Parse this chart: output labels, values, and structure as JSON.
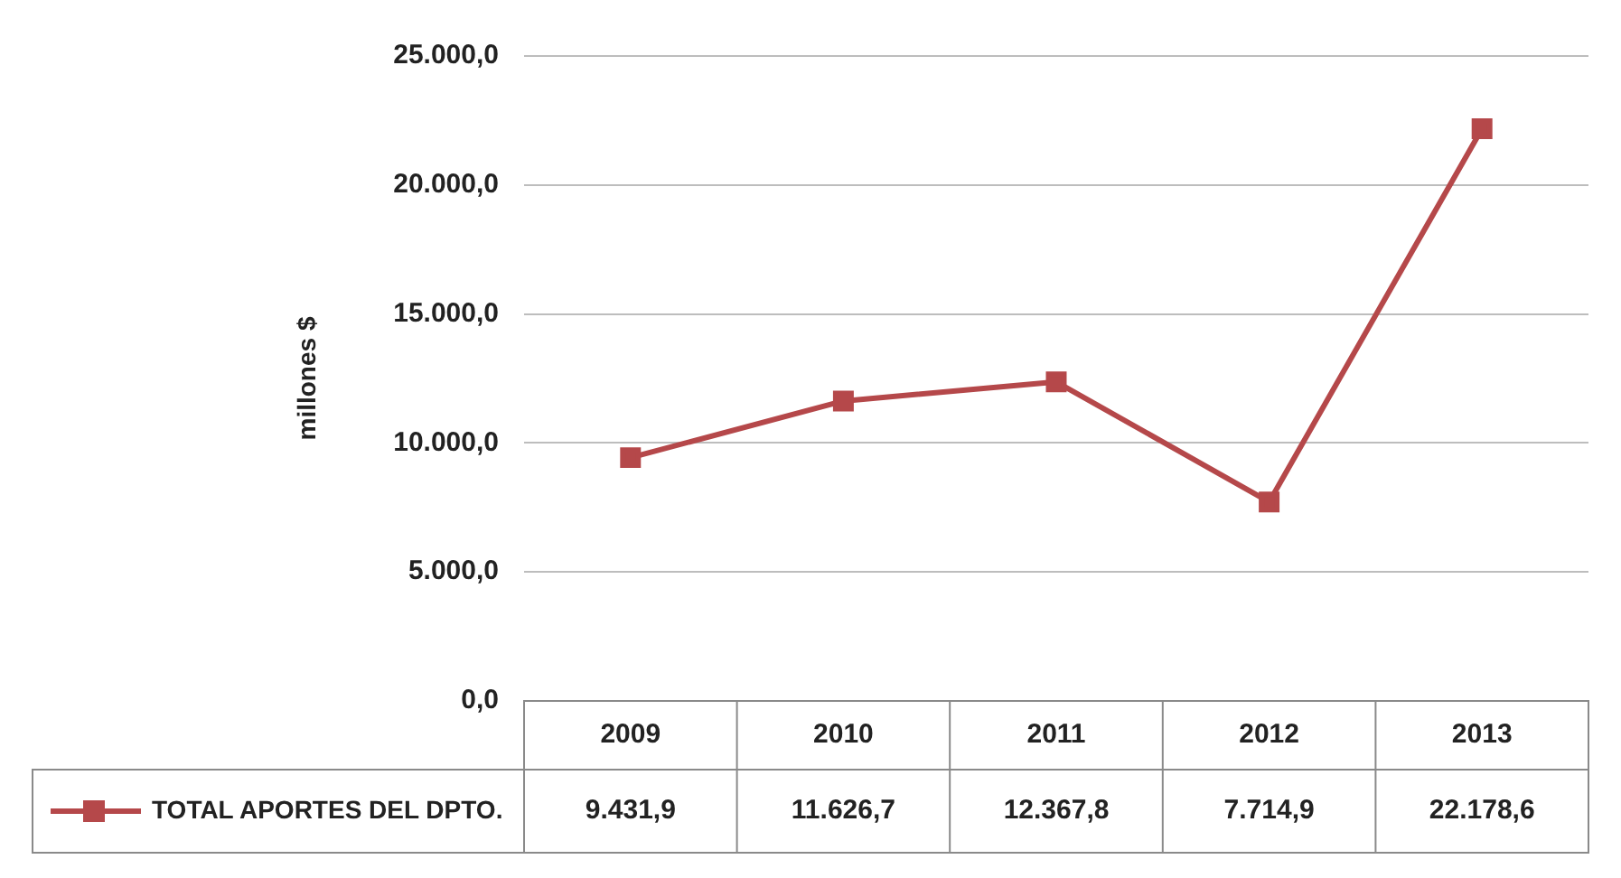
{
  "chart_data": {
    "type": "line",
    "ylabel": "millones $",
    "categories": [
      "2009",
      "2010",
      "2011",
      "2012",
      "2013"
    ],
    "series": [
      {
        "name": "TOTAL APORTES DEL DPTO.",
        "color": "#b5484a",
        "values": [
          9431.9,
          11626.7,
          12367.8,
          7714.9,
          22178.6
        ],
        "value_labels": [
          "9.431,9",
          "11.626,7",
          "12.367,8",
          "7.714,9",
          "22.178,6"
        ]
      }
    ],
    "ylim": [
      0,
      25000
    ],
    "yticks": [
      {
        "value": 0,
        "label": "0,0"
      },
      {
        "value": 5000,
        "label": "5.000,0"
      },
      {
        "value": 10000,
        "label": "10.000,0"
      },
      {
        "value": 15000,
        "label": "15.000,0"
      },
      {
        "value": 20000,
        "label": "20.000,0"
      },
      {
        "value": 25000,
        "label": "25.000,0"
      }
    ],
    "grid": "y",
    "legend": "bottom left",
    "marker": "square",
    "line_style": "solid"
  }
}
